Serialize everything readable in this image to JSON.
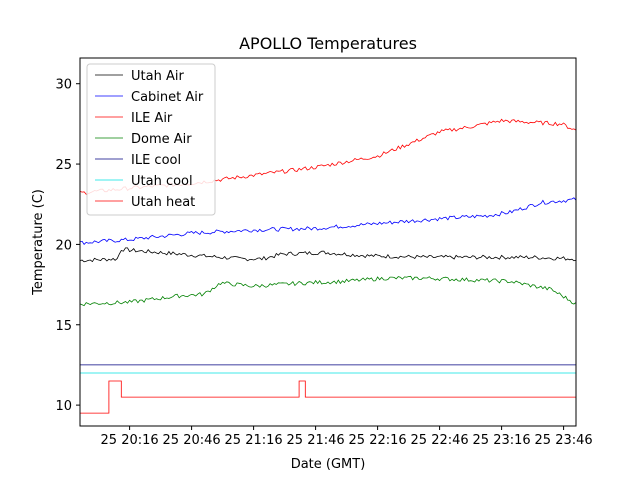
{
  "chart_data": {
    "type": "line",
    "title": "APOLLO Temperatures",
    "xlabel": "Date (GMT)",
    "ylabel": "Temperature (C)",
    "x_start": "2025-01-25 19:55",
    "x_end": "2025-01-25 23:52",
    "xlim": [
      "2025-01-25 19:52",
      "2025-01-25 23:52"
    ],
    "ylim": [
      8.7,
      31.6
    ],
    "x_ticks": [
      {
        "time": "2025-01-25 20:16",
        "label": "25 20:16"
      },
      {
        "time": "2025-01-25 20:46",
        "label": "25 20:46"
      },
      {
        "time": "2025-01-25 21:16",
        "label": "25 21:16"
      },
      {
        "time": "2025-01-25 21:46",
        "label": "25 21:46"
      },
      {
        "time": "2025-01-25 22:16",
        "label": "25 22:16"
      },
      {
        "time": "2025-01-25 22:46",
        "label": "25 22:46"
      },
      {
        "time": "2025-01-25 23:16",
        "label": "25 23:16"
      },
      {
        "time": "2025-01-25 23:46",
        "label": "25 23:46"
      }
    ],
    "y_ticks": [
      10,
      15,
      20,
      25,
      30
    ],
    "grid": false,
    "legend_position": "top-left",
    "series": [
      {
        "name": "Utah Air",
        "color": "#000000",
        "style": "noisy",
        "x": [
          "2025-01-25 19:52",
          "2025-01-25 20:10",
          "2025-01-25 20:12",
          "2025-01-25 20:20",
          "2025-01-25 20:40",
          "2025-01-25 21:00",
          "2025-01-25 21:10",
          "2025-01-25 21:20",
          "2025-01-25 21:30",
          "2025-01-25 21:50",
          "2025-01-25 22:10",
          "2025-01-25 22:40",
          "2025-01-25 23:10",
          "2025-01-25 23:30",
          "2025-01-25 23:52"
        ],
        "y": [
          19.0,
          19.1,
          19.7,
          19.6,
          19.4,
          19.2,
          19.1,
          19.1,
          19.4,
          19.5,
          19.3,
          19.2,
          19.2,
          19.2,
          19.1
        ]
      },
      {
        "name": "Cabinet Air",
        "color": "#0000ff",
        "style": "noisy",
        "x": [
          "2025-01-25 19:52",
          "2025-01-25 20:16",
          "2025-01-25 20:46",
          "2025-01-25 21:16",
          "2025-01-25 21:46",
          "2025-01-25 22:16",
          "2025-01-25 22:46",
          "2025-01-25 23:10",
          "2025-01-25 23:20",
          "2025-01-25 23:35",
          "2025-01-25 23:52"
        ],
        "y": [
          20.1,
          20.3,
          20.7,
          20.9,
          21.0,
          21.3,
          21.6,
          21.8,
          22.0,
          22.6,
          22.8
        ]
      },
      {
        "name": "ILE Air",
        "color": "#ff0000",
        "style": "noisy",
        "x": [
          "2025-01-25 19:52",
          "2025-01-25 20:16",
          "2025-01-25 20:46",
          "2025-01-25 21:16",
          "2025-01-25 21:46",
          "2025-01-25 22:16",
          "2025-01-25 22:30",
          "2025-01-25 22:46",
          "2025-01-25 23:00",
          "2025-01-25 23:16",
          "2025-01-25 23:30",
          "2025-01-25 23:45",
          "2025-01-25 23:52"
        ],
        "y": [
          23.2,
          23.5,
          23.8,
          24.3,
          24.8,
          25.5,
          26.2,
          27.0,
          27.3,
          27.7,
          27.6,
          27.5,
          27.1
        ]
      },
      {
        "name": "Dome Air",
        "color": "#008000",
        "style": "noisy",
        "x": [
          "2025-01-25 19:52",
          "2025-01-25 20:16",
          "2025-01-25 20:40",
          "2025-01-25 20:52",
          "2025-01-25 21:00",
          "2025-01-25 21:16",
          "2025-01-25 21:40",
          "2025-01-25 22:00",
          "2025-01-25 22:20",
          "2025-01-25 22:40",
          "2025-01-25 23:00",
          "2025-01-25 23:20",
          "2025-01-25 23:40",
          "2025-01-25 23:52"
        ],
        "y": [
          16.3,
          16.4,
          16.8,
          16.9,
          17.6,
          17.4,
          17.6,
          17.7,
          17.9,
          17.9,
          17.8,
          17.7,
          17.2,
          16.3
        ]
      },
      {
        "name": "ILE cool",
        "color": "#000080",
        "style": "steps",
        "x": [
          "2025-01-25 19:52",
          "2025-01-25 23:52"
        ],
        "y": [
          12.5,
          12.5
        ]
      },
      {
        "name": "Utah cool",
        "color": "#00e0e0",
        "style": "steps",
        "x": [
          "2025-01-25 19:52",
          "2025-01-25 23:52"
        ],
        "y": [
          12.0,
          12.0
        ]
      },
      {
        "name": "Utah heat",
        "color": "#ff0000",
        "style": "steps",
        "x": [
          "2025-01-25 19:52",
          "2025-01-25 20:06",
          "2025-01-25 20:12",
          "2025-01-25 21:38",
          "2025-01-25 21:41",
          "2025-01-25 23:52"
        ],
        "y": [
          9.5,
          11.5,
          10.5,
          11.5,
          10.5,
          10.5
        ]
      }
    ]
  }
}
